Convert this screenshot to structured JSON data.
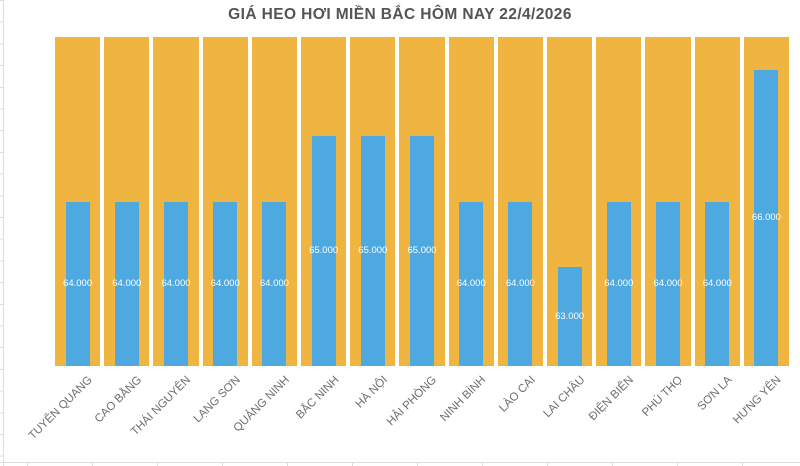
{
  "chart_data": {
    "type": "bar",
    "title": "GIÁ HEO HƠI MIỀN BẮC HÔM NAY 22/4/2026",
    "categories": [
      "TUYÊN QUANG",
      "CAO BẰNG",
      "THÁI NGUYÊN",
      "LẠNG SƠN",
      "QUẢNG NINH",
      "BẮC NINH",
      "HÀ NỘI",
      "HẢI PHÒNG",
      "NINH BÌNH",
      "LÀO CAI",
      "LAI CHÂU",
      "ĐIỆN BIÊN",
      "PHÚ THỌ",
      "SƠN LA",
      "HƯNG YÊN"
    ],
    "values": [
      64000,
      64000,
      64000,
      64000,
      64000,
      65000,
      65000,
      65000,
      64000,
      64000,
      63000,
      64000,
      64000,
      64000,
      66000
    ],
    "value_labels": [
      "64.000",
      "64.000",
      "64.000",
      "64.000",
      "64.000",
      "65.000",
      "65.000",
      "65.000",
      "64.000",
      "64.000",
      "63.000",
      "64.000",
      "64.000",
      "64.000",
      "66.000"
    ],
    "xlabel": "",
    "ylabel": "",
    "ylim": [
      61500,
      66500
    ],
    "grid": "off",
    "legend": "none",
    "x_tick_rotation_deg": 45,
    "colors": {
      "column_background": "#F0B440",
      "bar": "#4EA9E0",
      "title_text": "#545454",
      "category_label_text": "#6E6E6E",
      "value_label_text": "#FFFFFF",
      "axis_tick_line": "#DCDCDC",
      "page_background": "#FFFFFF"
    }
  }
}
